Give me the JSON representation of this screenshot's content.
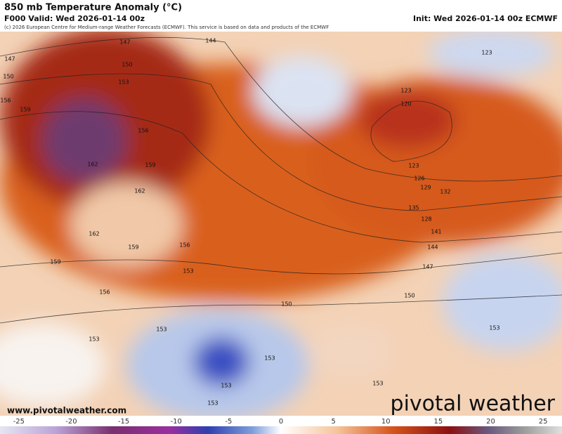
{
  "header": {
    "title": "850 mb Temperature Anomaly (°C)",
    "valid": "F000 Valid: Wed 2026-01-14 00z",
    "init": "Init: Wed 2026-01-14 00z ECMWF",
    "credit": "(c) 2026 European Centre for Medium-range Weather Forecasts (ECMWF). This service is based on data and products of the ECMWF"
  },
  "map": {
    "contour_labels": [
      147,
      144,
      147,
      150,
      150,
      153,
      156,
      159,
      156,
      159,
      162,
      162,
      162,
      159,
      156,
      153,
      159,
      156,
      150,
      153,
      153,
      153,
      153,
      153,
      153,
      153,
      150,
      147,
      144,
      141,
      128,
      135,
      132,
      129,
      126,
      123,
      120,
      123,
      123
    ]
  },
  "footer": {
    "website": "www.pivotalweather.com",
    "brand": "pivotal weather"
  },
  "colorbar": {
    "range": [
      -26.8,
      26.8
    ],
    "ticks": [
      -25,
      -20,
      -15,
      -10,
      -5,
      0,
      5,
      10,
      15,
      20,
      25
    ]
  }
}
